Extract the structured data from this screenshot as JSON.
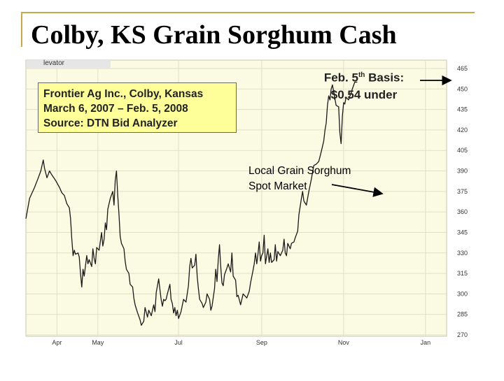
{
  "slide": {
    "title": "Colby, KS Grain Sorghum Cash"
  },
  "chart_header": "levator ",
  "info_box": {
    "line1": "Frontier Ag Inc., Colby, Kansas",
    "line2": "March 6, 2007 – Feb. 5, 2008",
    "line3": "Source: DTN Bid Analyzer"
  },
  "annotations": {
    "basis_line1_pre": "Feb. 5",
    "basis_line1_sup": "th",
    "basis_line1_post": " Basis:",
    "basis_line2": "$0.54 under",
    "spot_line1": "Local Grain Sorghum",
    "spot_line2": "Spot Market"
  },
  "colors": {
    "plot_bg": "#fbfae2",
    "line": "#1a1a1a",
    "grid": "#e2dfc6",
    "box_fill": "#ffff99",
    "accent": "#c8a84b"
  },
  "chart_data": {
    "type": "line",
    "title": "",
    "xlabel": "",
    "ylabel": "",
    "grid": true,
    "ylim": [
      270,
      465
    ],
    "yticks": [
      465,
      450,
      435,
      420,
      405,
      390,
      375,
      360,
      345,
      330,
      315,
      300,
      285,
      270
    ],
    "xticks": [
      "Apr",
      "May",
      "Jul",
      "Sep",
      "Nov",
      "Jan"
    ],
    "xtick_positions": [
      25,
      58,
      123,
      190,
      256,
      322
    ],
    "xlim": [
      0,
      339
    ],
    "series": [
      {
        "values": [
          [
            0,
            355
          ],
          [
            3,
            370
          ],
          [
            7,
            378
          ],
          [
            10,
            385
          ],
          [
            12,
            390
          ],
          [
            14,
            398
          ],
          [
            15,
            392
          ],
          [
            17,
            385
          ],
          [
            19,
            390
          ],
          [
            21,
            387
          ],
          [
            24,
            383
          ],
          [
            27,
            378
          ],
          [
            29,
            374
          ],
          [
            31,
            372
          ],
          [
            33,
            366
          ],
          [
            35,
            363
          ],
          [
            36,
            355
          ],
          [
            37,
            340
          ],
          [
            38,
            328
          ],
          [
            39,
            332
          ],
          [
            40,
            329
          ],
          [
            42,
            330
          ],
          [
            43,
            327
          ],
          [
            44,
            315
          ],
          [
            45,
            305
          ],
          [
            46,
            318
          ],
          [
            47,
            313
          ],
          [
            49,
            328
          ],
          [
            50,
            322
          ],
          [
            51,
            325
          ],
          [
            53,
            320
          ],
          [
            54,
            333
          ],
          [
            55,
            326
          ],
          [
            56,
            322
          ],
          [
            57,
            334
          ],
          [
            59,
            332
          ],
          [
            61,
            345
          ],
          [
            62,
            335
          ],
          [
            63,
            340
          ],
          [
            64,
            352
          ],
          [
            65,
            347
          ],
          [
            66,
            362
          ],
          [
            68,
            370
          ],
          [
            70,
            375
          ],
          [
            71,
            365
          ],
          [
            72,
            383
          ],
          [
            73,
            390
          ],
          [
            74,
            372
          ],
          [
            75,
            358
          ],
          [
            76,
            342
          ],
          [
            77,
            337
          ],
          [
            79,
            333
          ],
          [
            80,
            324
          ],
          [
            81,
            318
          ],
          [
            83,
            315
          ],
          [
            84,
            307
          ],
          [
            86,
            305
          ],
          [
            87,
            297
          ],
          [
            88,
            292
          ],
          [
            90,
            286
          ],
          [
            92,
            281
          ],
          [
            93,
            277
          ],
          [
            95,
            280
          ],
          [
            96,
            290
          ],
          [
            98,
            283
          ],
          [
            99,
            288
          ],
          [
            101,
            284
          ],
          [
            102,
            288
          ],
          [
            103,
            292
          ],
          [
            104,
            287
          ],
          [
            105,
            301
          ],
          [
            107,
            311
          ],
          [
            108,
            303
          ],
          [
            109,
            296
          ],
          [
            110,
            291
          ],
          [
            111,
            296
          ],
          [
            112,
            295
          ],
          [
            113,
            296
          ],
          [
            114,
            300
          ],
          [
            116,
            307
          ],
          [
            117,
            296
          ],
          [
            118,
            293
          ],
          [
            119,
            286
          ],
          [
            120,
            290
          ],
          [
            121,
            284
          ],
          [
            122,
            288
          ],
          [
            123,
            282
          ],
          [
            125,
            287
          ],
          [
            127,
            296
          ],
          [
            129,
            294
          ],
          [
            131,
            306
          ],
          [
            132,
            320
          ],
          [
            133,
            326
          ],
          [
            134,
            319
          ],
          [
            136,
            321
          ],
          [
            137,
            329
          ],
          [
            138,
            313
          ],
          [
            139,
            304
          ],
          [
            140,
            296
          ],
          [
            142,
            293
          ],
          [
            143,
            290
          ],
          [
            145,
            294
          ],
          [
            146,
            300
          ],
          [
            148,
            296
          ],
          [
            149,
            288
          ],
          [
            150,
            291
          ],
          [
            152,
            304
          ],
          [
            153,
            318
          ],
          [
            154,
            309
          ],
          [
            155,
            325
          ],
          [
            156,
            336
          ],
          [
            157,
            320
          ],
          [
            158,
            308
          ],
          [
            159,
            306
          ],
          [
            160,
            314
          ],
          [
            162,
            319
          ],
          [
            163,
            322
          ],
          [
            165,
            316
          ],
          [
            166,
            330
          ],
          [
            167,
            313
          ],
          [
            169,
            310
          ],
          [
            170,
            298
          ],
          [
            171,
            299
          ],
          [
            173,
            292
          ],
          [
            175,
            300
          ],
          [
            178,
            297
          ],
          [
            180,
            302
          ],
          [
            181,
            308
          ],
          [
            183,
            317
          ],
          [
            184,
            322
          ],
          [
            185,
            330
          ],
          [
            186,
            322
          ],
          [
            187,
            329
          ],
          [
            188,
            338
          ],
          [
            189,
            324
          ],
          [
            190,
            328
          ],
          [
            191,
            330
          ],
          [
            192,
            343
          ],
          [
            193,
            322
          ],
          [
            195,
            333
          ],
          [
            196,
            323
          ],
          [
            197,
            330
          ],
          [
            198,
            323
          ],
          [
            200,
            325
          ],
          [
            201,
            336
          ],
          [
            202,
            324
          ],
          [
            203,
            331
          ],
          [
            205,
            328
          ],
          [
            207,
            332
          ],
          [
            208,
            340
          ],
          [
            209,
            330
          ],
          [
            210,
            328
          ],
          [
            211,
            337
          ],
          [
            213,
            333
          ],
          [
            214,
            337
          ],
          [
            216,
            338
          ],
          [
            217,
            341
          ],
          [
            219,
            346
          ],
          [
            220,
            358
          ],
          [
            222,
            370
          ],
          [
            223,
            375
          ],
          [
            224,
            368
          ],
          [
            226,
            365
          ],
          [
            228,
            375
          ],
          [
            230,
            384
          ],
          [
            232,
            394
          ],
          [
            234,
            395
          ],
          [
            236,
            397
          ],
          [
            238,
            404
          ],
          [
            240,
            412
          ],
          [
            241,
            420
          ],
          [
            242,
            425
          ],
          [
            243,
            438
          ],
          [
            244,
            445
          ],
          [
            245,
            442
          ],
          [
            246,
            450
          ],
          [
            247,
            453
          ],
          [
            249,
            443
          ],
          [
            250,
            438
          ],
          [
            252,
            437
          ],
          [
            253,
            418
          ],
          [
            254,
            410
          ],
          [
            255,
            430
          ],
          [
            256,
            440
          ],
          [
            257,
            439
          ],
          [
            258,
            444
          ],
          [
            260,
            442
          ],
          [
            262,
            447
          ],
          [
            263,
            450
          ],
          [
            265,
            455
          ],
          [
            267,
            455
          ]
        ]
      }
    ]
  }
}
